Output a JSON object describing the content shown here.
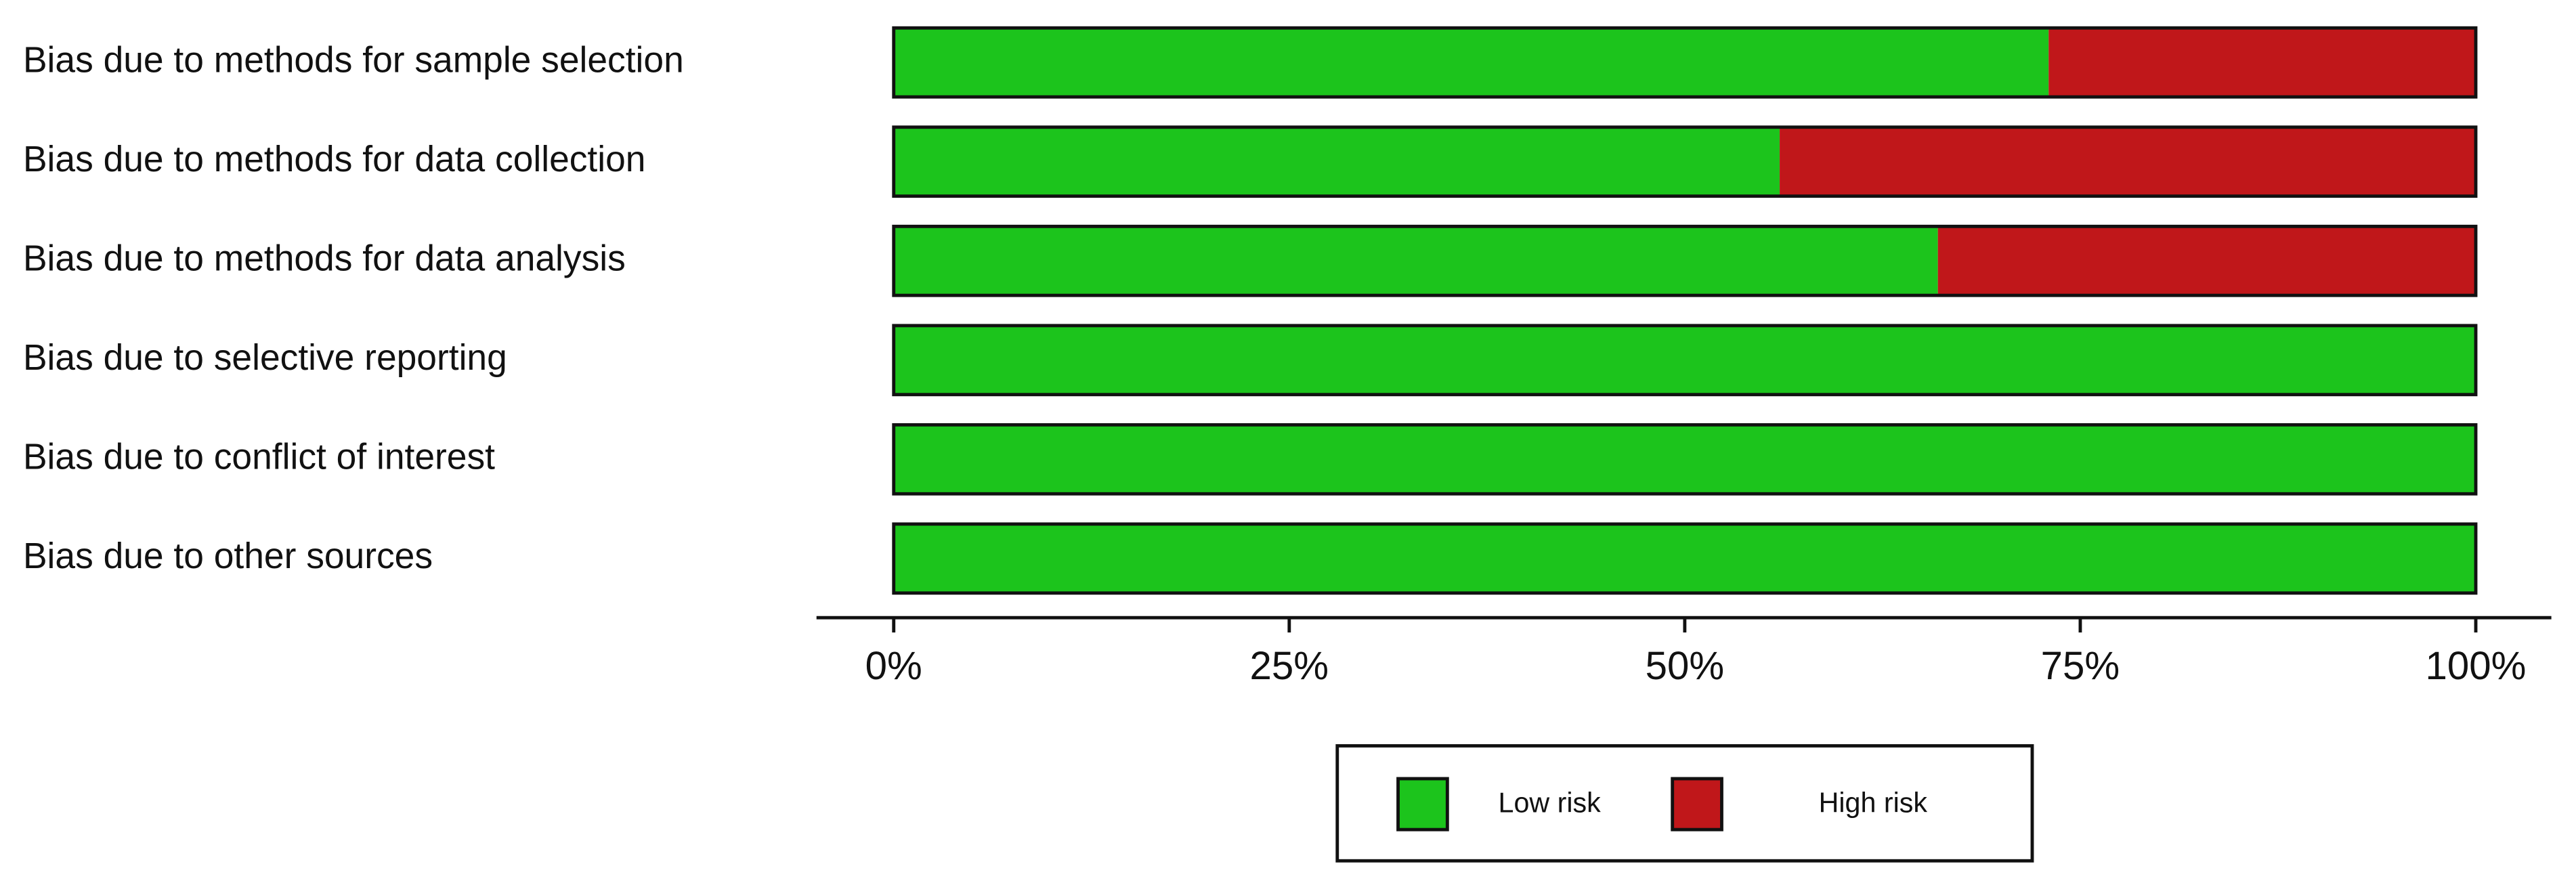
{
  "chart_data": {
    "type": "stacked-barh",
    "categories": [
      "Bias due to methods for sample selection",
      "Bias due to methods for data collection",
      "Bias due to methods for data analysis",
      "Bias due to selective reporting",
      "Bias due to conflict of interest",
      "Bias due to other sources"
    ],
    "series": [
      {
        "name": "Low risk",
        "color": "#1cc41c",
        "values": [
          73,
          56,
          66,
          100,
          100,
          100
        ]
      },
      {
        "name": "High risk",
        "color": "#c0171a",
        "values": [
          27,
          44,
          34,
          0,
          0,
          0
        ]
      }
    ],
    "xlim": [
      0,
      100
    ],
    "xticks": [
      {
        "value": 0,
        "label": "0%"
      },
      {
        "value": 25,
        "label": "25%"
      },
      {
        "value": 50,
        "label": "50%"
      },
      {
        "value": 75,
        "label": "75%"
      },
      {
        "value": 100,
        "label": "100%"
      }
    ],
    "legend": "bottom"
  }
}
